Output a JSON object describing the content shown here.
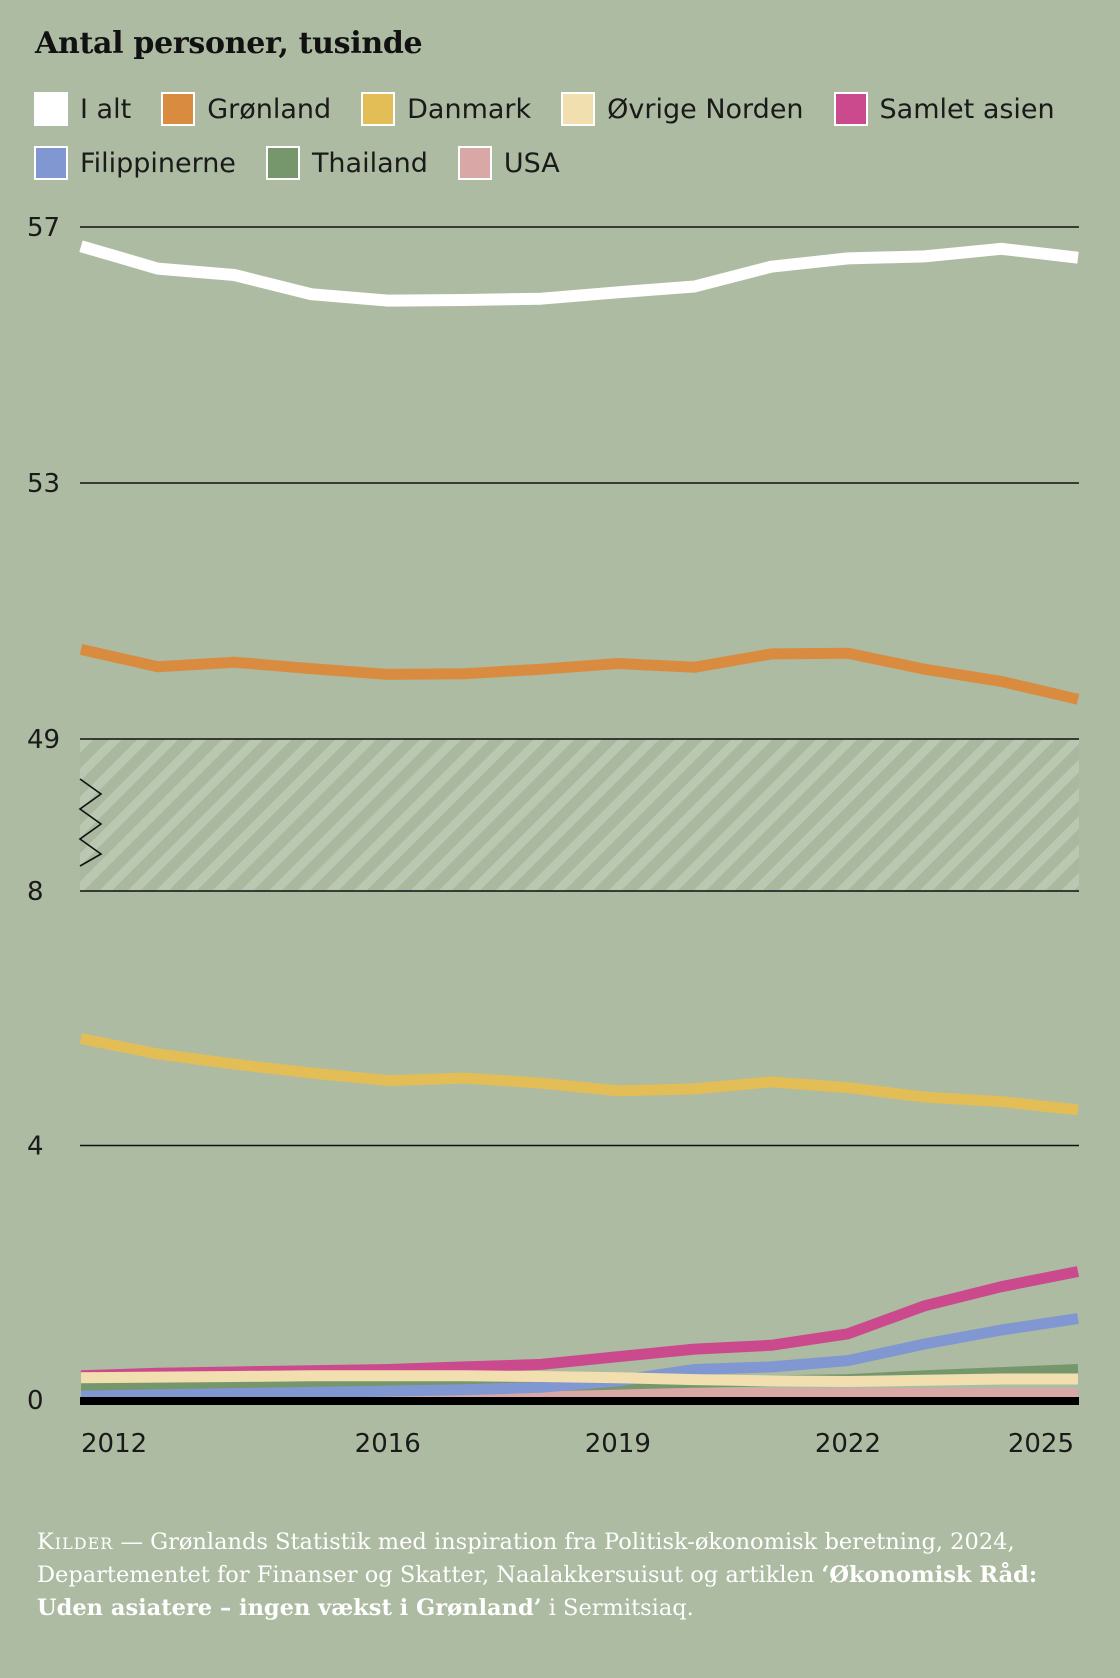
{
  "title": "Antal personer, tusinde",
  "legend_rows": [
    [
      {
        "label": "I alt",
        "color": "#ffffff"
      },
      {
        "label": "Grønland",
        "color": "#d98c3f"
      },
      {
        "label": "Danmark",
        "color": "#e3bd56"
      },
      {
        "label": "Øvrige Norden",
        "color": "#f1dfaf"
      },
      {
        "label": "Samlet asien",
        "color": "#cb4a8d"
      }
    ],
    [
      {
        "label": "Filippinerne",
        "color": "#8197d1"
      },
      {
        "label": "Thailand",
        "color": "#76976b"
      },
      {
        "label": "USA",
        "color": "#d9a8a6"
      }
    ]
  ],
  "source": {
    "kicker": "Kilder",
    "text1": " — Grønlands Statistik med inspiration fra Politisk-økonomisk beretning, 2024, Departementet for Finanser og Skatter, Naalakkersuisut og artiklen ",
    "article": "‘Økonomisk Råd: Uden asiatere – ingen vækst i Grønland’",
    "text2": " i Sermitsiaq."
  },
  "chart_data": {
    "type": "line",
    "x": [
      2012,
      2013,
      2014,
      2015,
      2016,
      2017,
      2018,
      2019,
      2020,
      2021,
      2022,
      2023,
      2024,
      2025
    ],
    "x_tick_labels": [
      "2012",
      "2016",
      "2019",
      "2022",
      "2025"
    ],
    "y_tick_labels": [
      "57",
      "53",
      "49",
      "8",
      "4",
      "0"
    ],
    "y_axis_break": [
      8,
      49
    ],
    "ylim_lower": [
      0,
      8
    ],
    "ylim_upper": [
      49,
      57
    ],
    "grid": true,
    "legend": "top",
    "series": [
      {
        "name": "I alt",
        "color": "#ffffff",
        "values": [
          56.7,
          56.35,
          56.25,
          55.95,
          55.85,
          55.86,
          55.88,
          55.98,
          56.07,
          56.38,
          56.51,
          56.54,
          56.66,
          56.52
        ]
      },
      {
        "name": "Grønland",
        "color": "#d98c3f",
        "values": [
          50.4,
          50.13,
          50.2,
          50.1,
          50.01,
          50.02,
          50.09,
          50.18,
          50.12,
          50.33,
          50.34,
          50.09,
          49.9,
          49.62
        ]
      },
      {
        "name": "Danmark",
        "color": "#e3bd56",
        "values": [
          5.68,
          5.44,
          5.28,
          5.14,
          5.02,
          5.06,
          4.98,
          4.86,
          4.89,
          5,
          4.91,
          4.76,
          4.69,
          4.56
        ]
      },
      {
        "name": "Øvrige Norden",
        "color": "#f1dfaf",
        "values": [
          0.35,
          0.36,
          0.37,
          0.38,
          0.38,
          0.38,
          0.37,
          0.35,
          0.32,
          0.3,
          0.29,
          0.31,
          0.33,
          0.33
        ]
      },
      {
        "name": "Samlet asien",
        "color": "#cb4a8d",
        "values": [
          0.38,
          0.42,
          0.44,
          0.46,
          0.48,
          0.52,
          0.56,
          0.68,
          0.8,
          0.86,
          1.04,
          1.48,
          1.78,
          2.02
        ]
      },
      {
        "name": "Filippinerne",
        "color": "#8197d1",
        "values": [
          0.06,
          0.08,
          0.1,
          0.12,
          0.14,
          0.16,
          0.2,
          0.3,
          0.48,
          0.52,
          0.62,
          0.88,
          1.1,
          1.28
        ]
      },
      {
        "name": "Thailand",
        "color": "#76976b",
        "values": [
          0.2,
          0.21,
          0.22,
          0.23,
          0.23,
          0.23,
          0.22,
          0.25,
          0.28,
          0.3,
          0.32,
          0.38,
          0.43,
          0.48
        ]
      },
      {
        "name": "USA",
        "color": "#d9a8a6",
        "values": [
          0.1,
          0.1,
          0.1,
          0.1,
          0.1,
          0.1,
          0.1,
          0.1,
          0.1,
          0.1,
          0.1,
          0.1,
          0.1,
          0.1
        ]
      }
    ]
  }
}
